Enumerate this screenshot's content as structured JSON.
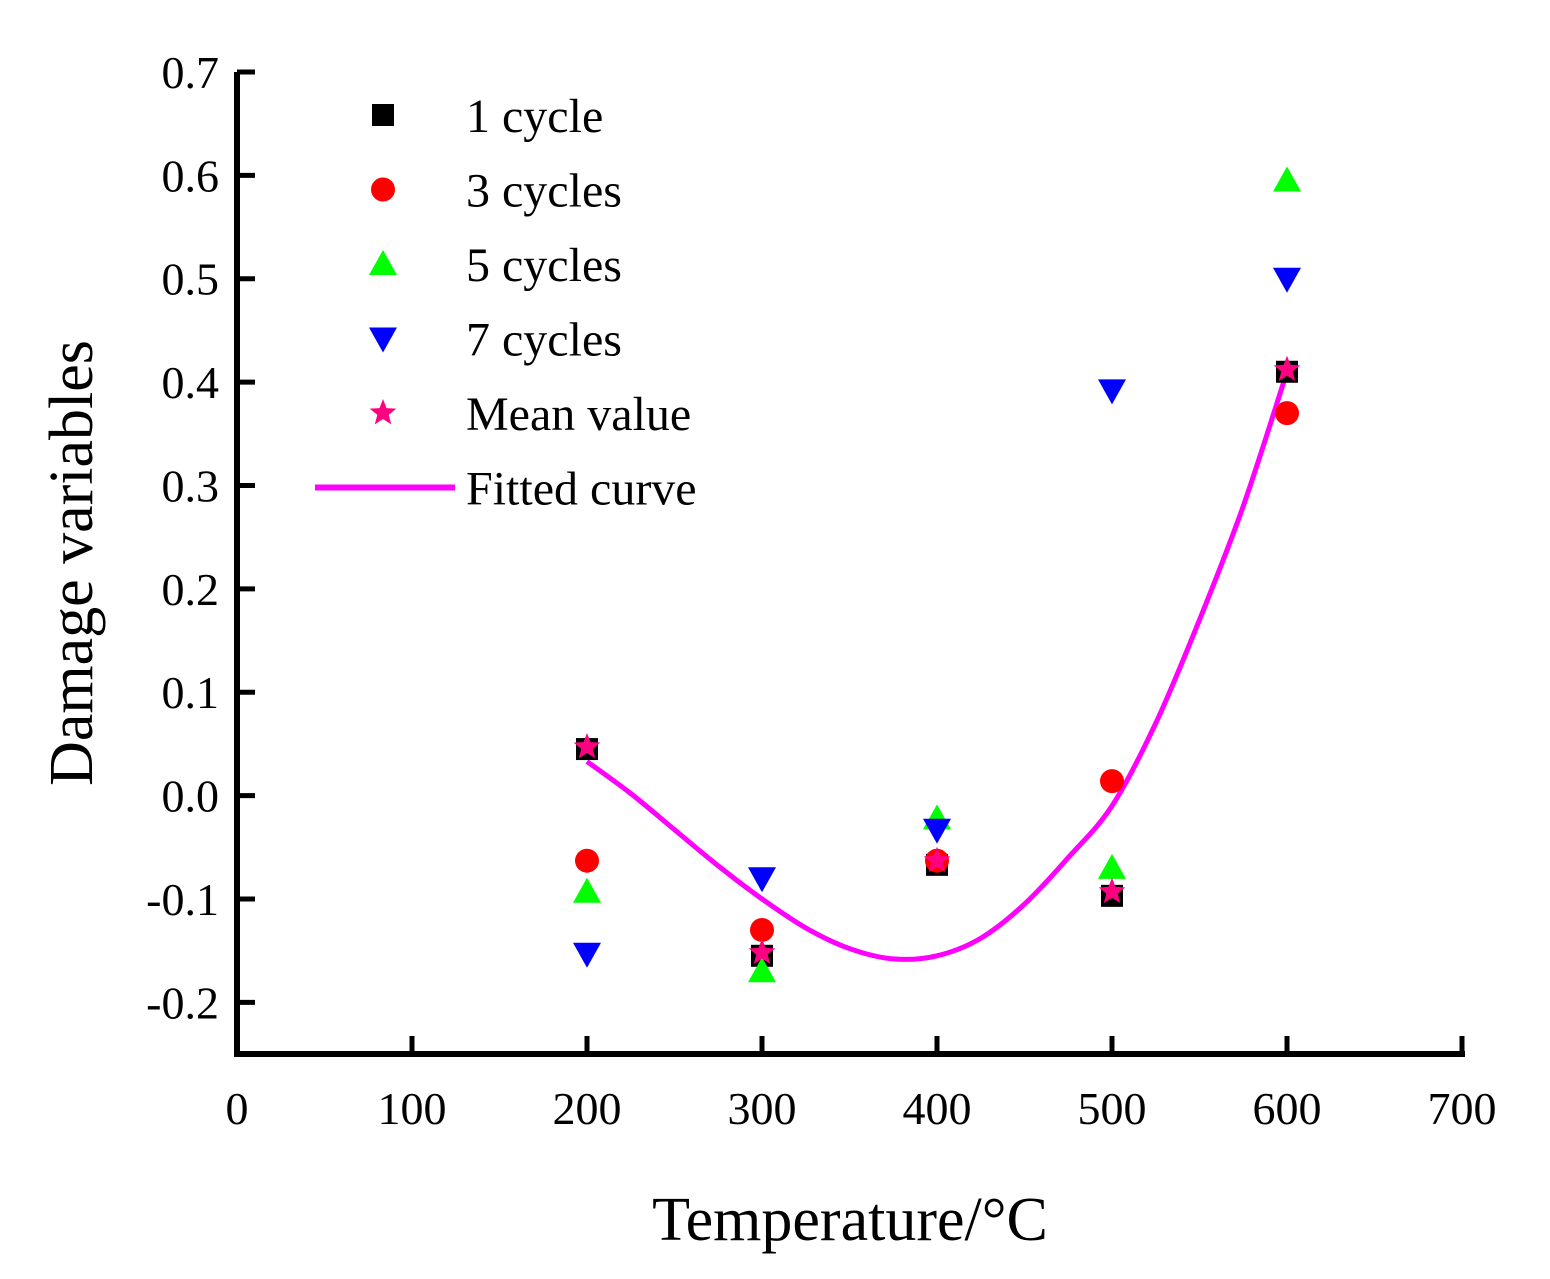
{
  "chart_data": {
    "type": "scatter",
    "xlabel": "Temperature/°C",
    "ylabel": "Damage variables",
    "xlim": [
      0,
      700
    ],
    "ylim": [
      -0.25,
      0.7
    ],
    "x_ticks": [
      0,
      100,
      200,
      300,
      400,
      500,
      600,
      700
    ],
    "x_tick_labels": [
      "0",
      "100",
      "200",
      "300",
      "400",
      "500",
      "600",
      "700"
    ],
    "y_ticks": [
      -0.2,
      -0.1,
      0.0,
      0.1,
      0.2,
      0.3,
      0.4,
      0.5,
      0.6,
      0.7
    ],
    "y_tick_labels": [
      "-0.2",
      "-0.1",
      "0.0",
      "0.1",
      "0.2",
      "0.3",
      "0.4",
      "0.5",
      "0.6",
      "0.7"
    ],
    "grid": false,
    "legend_position": "top-left",
    "x": [
      200,
      300,
      400,
      500,
      600
    ],
    "series": [
      {
        "name": "1 cycle",
        "marker": "square",
        "color": "#000000",
        "values": [
          0.045,
          -0.155,
          -0.067,
          -0.097,
          0.41
        ]
      },
      {
        "name": "3 cycles",
        "marker": "circle",
        "color": "#ff0000",
        "values": [
          -0.063,
          -0.13,
          -0.063,
          0.014,
          0.37
        ]
      },
      {
        "name": "5 cycles",
        "marker": "triangle-up",
        "color": "#00ff00",
        "values": [
          -0.093,
          -0.17,
          -0.022,
          -0.07,
          0.595
        ]
      },
      {
        "name": "7 cycles",
        "marker": "triangle-down",
        "color": "#0000ff",
        "values": [
          -0.153,
          -0.08,
          -0.033,
          0.392,
          0.5
        ]
      },
      {
        "name": "Mean value",
        "marker": "star",
        "color": "#ff0080",
        "values": [
          0.047,
          -0.152,
          -0.063,
          -0.093,
          0.412
        ]
      }
    ],
    "fitted_curve": {
      "name": "Fitted curve",
      "color": "#ff00ff",
      "x": [
        200,
        225,
        250,
        275,
        300,
        325,
        350,
        375,
        400,
        425,
        450,
        475,
        500,
        525,
        550,
        575,
        600
      ],
      "y": [
        0.033,
        0.002,
        -0.033,
        -0.068,
        -0.1,
        -0.128,
        -0.148,
        -0.158,
        -0.155,
        -0.138,
        -0.105,
        -0.06,
        -0.01,
        0.07,
        0.17,
        0.28,
        0.41
      ]
    }
  }
}
